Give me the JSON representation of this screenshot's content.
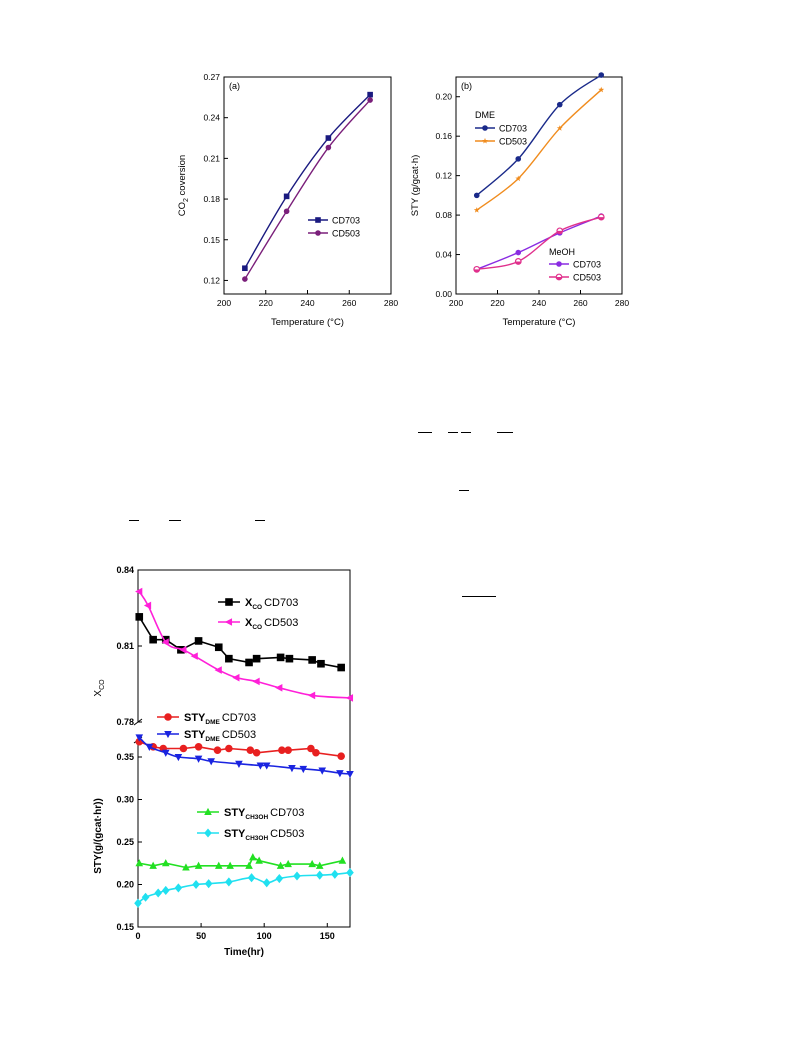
{
  "chart_data": [
    {
      "id": "a",
      "type": "line",
      "panel_label": "(a)",
      "xlabel": "Temperature (°C)",
      "ylabel": "CO2 coversion",
      "ylabel_main": "CO",
      "ylabel_sub": "2",
      "ylabel_tail": " coversion",
      "xlim": [
        200,
        280
      ],
      "ylim": [
        0.11,
        0.27
      ],
      "xticks": [
        "200",
        "220",
        "240",
        "260",
        "280"
      ],
      "yticks": [
        "0.12",
        "0.15",
        "0.18",
        "0.21",
        "0.24",
        "0.27"
      ],
      "x": [
        210,
        230,
        250,
        270
      ],
      "series": [
        {
          "name": "CD703",
          "values": [
            0.129,
            0.182,
            0.225,
            0.257
          ],
          "color": "#1a1a80",
          "marker": "square"
        },
        {
          "name": "CD503",
          "values": [
            0.121,
            0.171,
            0.218,
            0.253
          ],
          "color": "#7a1f7a",
          "marker": "circle"
        }
      ]
    },
    {
      "id": "b",
      "type": "line",
      "panel_label": "(b)",
      "xlabel": "Temperature (°C)",
      "ylabel": "STY (g/gcat·h)",
      "xlim": [
        200,
        280
      ],
      "ylim": [
        0.0,
        0.22
      ],
      "xticks": [
        "200",
        "220",
        "240",
        "260",
        "280"
      ],
      "yticks": [
        "0.00",
        "0.04",
        "0.08",
        "0.12",
        "0.16",
        "0.20"
      ],
      "x": [
        210,
        230,
        250,
        270
      ],
      "groups": [
        "DME",
        "MeOH"
      ],
      "series": [
        {
          "group": "DME",
          "name": "CD703",
          "values": [
            0.1,
            0.137,
            0.192,
            0.222
          ],
          "color": "#1a2a8a",
          "marker": "circle"
        },
        {
          "group": "DME",
          "name": "CD503",
          "values": [
            0.085,
            0.117,
            0.168,
            0.207
          ],
          "color": "#f08c1e",
          "marker": "star"
        },
        {
          "group": "MeOH",
          "name": "CD703",
          "values": [
            0.025,
            0.042,
            0.062,
            0.079
          ],
          "color": "#8a2be2",
          "marker": "circle"
        },
        {
          "group": "MeOH",
          "name": "CD503",
          "values": [
            0.025,
            0.033,
            0.064,
            0.078
          ],
          "color": "#e0308c",
          "marker": "circle-half"
        }
      ]
    },
    {
      "id": "c",
      "type": "line",
      "xlabel": "Time(hr)",
      "xlim": [
        0,
        168
      ],
      "xticks": [
        "0",
        "50",
        "100",
        "150"
      ],
      "top": {
        "ylabel_main": "X",
        "ylabel_sub": "CO",
        "ylim": [
          0.78,
          0.84
        ],
        "yticks": [
          "0.78",
          "0.81",
          "0.84"
        ]
      },
      "bottom": {
        "ylabel": "STY(g/(gcat·hr))",
        "ylim": [
          0.15,
          0.37
        ],
        "yticks": [
          "0.15",
          "0.20",
          "0.25",
          "0.30",
          "0.35"
        ]
      },
      "series": [
        {
          "panel": "top",
          "label_main": "X",
          "label_sub": "CO",
          "name": "CD703",
          "color": "#000000",
          "marker": "square",
          "x": [
            1,
            12,
            22,
            34,
            48,
            64,
            72,
            88,
            94,
            113,
            120,
            138,
            145,
            161
          ],
          "values": [
            0.8215,
            0.8125,
            0.8125,
            0.8085,
            0.812,
            0.8095,
            0.805,
            0.8035,
            0.805,
            0.8055,
            0.805,
            0.8045,
            0.803,
            0.8015
          ]
        },
        {
          "panel": "top",
          "label_main": "X",
          "label_sub": "CO",
          "name": "CD503",
          "color": "#ff20d8",
          "marker": "triangle-left",
          "x": [
            1,
            8,
            22,
            36,
            45,
            64,
            78,
            94,
            112,
            138,
            168
          ],
          "values": [
            0.8315,
            0.826,
            0.8115,
            0.8085,
            0.806,
            0.8005,
            0.7975,
            0.796,
            0.7935,
            0.7905,
            0.7895
          ]
        },
        {
          "panel": "bottom",
          "label_main": "STY",
          "label_sub": "DME",
          "name": "CD703",
          "color": "#e82020",
          "marker": "circle",
          "x": [
            1,
            12,
            20,
            36,
            48,
            63,
            72,
            89,
            94,
            114,
            119,
            137,
            141,
            161
          ],
          "values": [
            0.368,
            0.362,
            0.36,
            0.36,
            0.362,
            0.358,
            0.36,
            0.358,
            0.355,
            0.358,
            0.358,
            0.36,
            0.355,
            0.351
          ]
        },
        {
          "panel": "bottom",
          "label_main": "STY",
          "label_sub": "DME",
          "name": "CD503",
          "color": "#1a24e0",
          "marker": "triangle-down",
          "x": [
            1,
            9,
            22,
            32,
            48,
            58,
            80,
            97,
            102,
            122,
            131,
            146,
            160,
            168
          ],
          "values": [
            0.373,
            0.362,
            0.355,
            0.35,
            0.348,
            0.345,
            0.342,
            0.34,
            0.34,
            0.337,
            0.336,
            0.334,
            0.331,
            0.33
          ]
        },
        {
          "panel": "bottom",
          "label_main": "STY",
          "label_sub": "CH3OH",
          "name": "CD703",
          "color": "#22e022",
          "marker": "triangle-up",
          "x": [
            1,
            12,
            22,
            38,
            48,
            64,
            73,
            88,
            91,
            96,
            113,
            119,
            138,
            144,
            162
          ],
          "values": [
            0.225,
            0.222,
            0.225,
            0.22,
            0.222,
            0.222,
            0.222,
            0.222,
            0.232,
            0.228,
            0.222,
            0.224,
            0.224,
            0.222,
            0.228
          ]
        },
        {
          "panel": "bottom",
          "label_main": "STY",
          "label_sub": "CH3OH",
          "name": "CD503",
          "color": "#20e0f0",
          "marker": "diamond",
          "x": [
            0,
            6,
            16,
            22,
            32,
            46,
            56,
            72,
            90,
            102,
            112,
            126,
            144,
            156,
            168
          ],
          "values": [
            0.178,
            0.185,
            0.19,
            0.193,
            0.196,
            0.2,
            0.201,
            0.203,
            0.208,
            0.202,
            0.207,
            0.21,
            0.211,
            0.212,
            0.214
          ]
        }
      ]
    }
  ]
}
